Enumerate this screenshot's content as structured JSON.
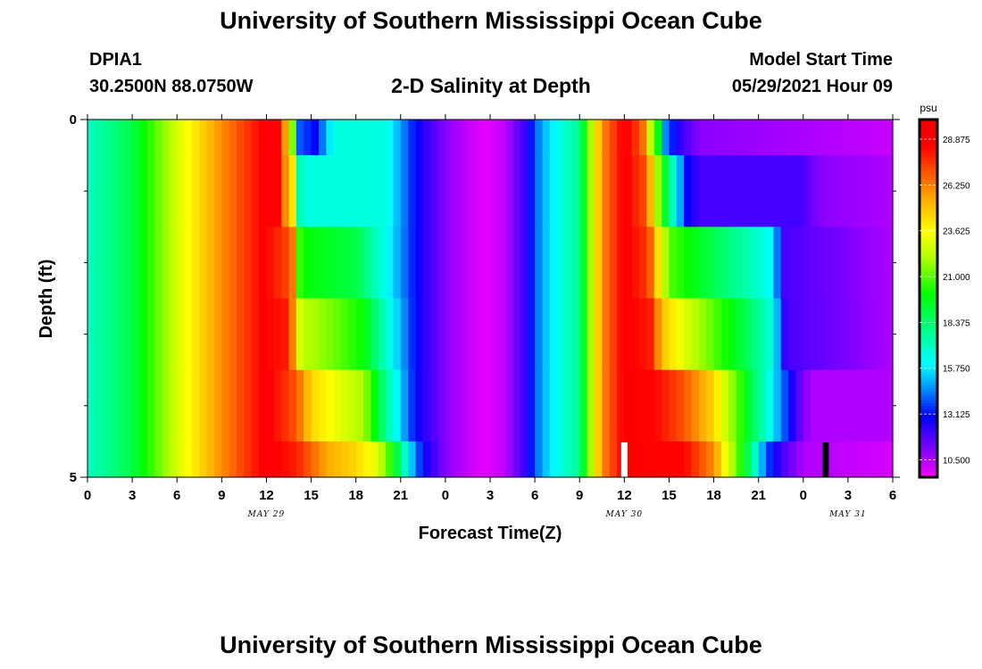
{
  "header": {
    "title_top": "University of Southern Mississippi Ocean Cube",
    "station_id": "DPIA1",
    "coordinates": "30.2500N  88.0750W",
    "subtitle": "2-D Salinity at Depth",
    "model_start_label": "Model Start Time",
    "model_start_value": "05/29/2021 Hour 09",
    "title_bottom": "University of Southern Mississippi Ocean Cube"
  },
  "chart_data": {
    "type": "heatmap",
    "title": "2-D Salinity at Depth",
    "xlabel": "Forecast Time(Z)",
    "ylabel": "Depth (ft)",
    "units": "psu",
    "xlim_hours": [
      0,
      54
    ],
    "ylim": [
      0,
      5
    ],
    "x_tick_labels": [
      "0",
      "3",
      "6",
      "9",
      "12",
      "15",
      "18",
      "21",
      "0",
      "3",
      "6",
      "9",
      "12",
      "15",
      "18",
      "21",
      "0",
      "3",
      "6"
    ],
    "y_tick_labels": [
      "0",
      "5"
    ],
    "date_labels": [
      {
        "text": "MAY 29",
        "hour": 12
      },
      {
        "text": "MAY 30",
        "hour": 36
      },
      {
        "text": "MAY 31",
        "hour": 51
      }
    ],
    "colorbar": {
      "min": 9.5,
      "max": 30.0,
      "tick_labels": [
        "28.875",
        "26.250",
        "23.625",
        "21.000",
        "18.375",
        "15.750",
        "13.125",
        "10.500"
      ],
      "tick_values": [
        28.875,
        26.25,
        23.625,
        21.0,
        18.375,
        15.75,
        13.125,
        10.5
      ]
    },
    "depth_layers": [
      {
        "top": 0.0,
        "bottom": 0.5
      },
      {
        "top": 0.5,
        "bottom": 1.5
      },
      {
        "top": 1.5,
        "bottom": 2.5
      },
      {
        "top": 2.5,
        "bottom": 3.5
      },
      {
        "top": 3.5,
        "bottom": 4.5
      },
      {
        "top": 4.5,
        "bottom": 5.0
      }
    ],
    "base_profile": [
      {
        "hour": 0,
        "value": 17.0
      },
      {
        "hour": 3,
        "value": 19.0
      },
      {
        "hour": 6,
        "value": 22.8
      },
      {
        "hour": 9,
        "value": 26.0
      },
      {
        "hour": 12,
        "value": 28.8
      },
      {
        "hour": 13.8,
        "value": 28.0
      },
      {
        "hour": 15,
        "value": 19.0
      },
      {
        "hour": 18,
        "value": 16.0
      },
      {
        "hour": 20.5,
        "value": 15.0
      },
      {
        "hour": 22,
        "value": 12.5
      },
      {
        "hour": 24,
        "value": 11.0
      },
      {
        "hour": 26.5,
        "value": 9.8
      },
      {
        "hour": 28,
        "value": 10.3
      },
      {
        "hour": 29.2,
        "value": 12.0
      },
      {
        "hour": 30.5,
        "value": 15.0
      },
      {
        "hour": 33,
        "value": 18.0
      },
      {
        "hour": 34.5,
        "value": 26.0
      },
      {
        "hour": 36,
        "value": 28.8
      },
      {
        "hour": 37,
        "value": 28.5
      },
      {
        "hour": 38,
        "value": 22.0
      },
      {
        "hour": 39,
        "value": 14.0
      },
      {
        "hour": 40.5,
        "value": 11.5
      },
      {
        "hour": 46,
        "value": 10.8
      },
      {
        "hour": 54,
        "value": 10.5
      }
    ],
    "layer_profiles": [
      [
        {
          "hour": 13,
          "value": 27.0
        },
        {
          "hour": 13.6,
          "value": 24.0
        },
        {
          "hour": 14.2,
          "value": 14.0
        },
        {
          "hour": 15.3,
          "value": 13.0
        },
        {
          "hour": 16.5,
          "value": 16.5
        },
        {
          "hour": 20,
          "value": 16.5
        },
        {
          "hour": 22,
          "value": 13.0
        },
        {
          "hour": 24,
          "value": 11.0
        },
        {
          "hour": 26.5,
          "value": 9.8
        },
        {
          "hour": 28,
          "value": 10.3
        },
        {
          "hour": 29.2,
          "value": 12.0
        },
        {
          "hour": 30.5,
          "value": 15.0
        },
        {
          "hour": 33,
          "value": 18.0
        },
        {
          "hour": 34.5,
          "value": 26.0
        },
        {
          "hour": 36,
          "value": 28.8
        },
        {
          "hour": 37.2,
          "value": 27.0
        },
        {
          "hour": 37.8,
          "value": 22.0
        },
        {
          "hour": 38.3,
          "value": 19.5
        },
        {
          "hour": 38.8,
          "value": 14.0
        },
        {
          "hour": 40,
          "value": 12.0
        },
        {
          "hour": 41,
          "value": 11.0
        },
        {
          "hour": 54,
          "value": 10.2
        }
      ],
      [
        {
          "hour": 13,
          "value": 27.0
        },
        {
          "hour": 13.8,
          "value": 24.0
        },
        {
          "hour": 14.3,
          "value": 16.5
        },
        {
          "hour": 20,
          "value": 16.5
        },
        {
          "hour": 22,
          "value": 13.0
        },
        {
          "hour": 24,
          "value": 11.0
        },
        {
          "hour": 26.5,
          "value": 9.8
        },
        {
          "hour": 28,
          "value": 10.3
        },
        {
          "hour": 29.2,
          "value": 12.0
        },
        {
          "hour": 30.5,
          "value": 15.0
        },
        {
          "hour": 33,
          "value": 18.0
        },
        {
          "hour": 34.5,
          "value": 26.0
        },
        {
          "hour": 36,
          "value": 28.8
        },
        {
          "hour": 37.5,
          "value": 27.0
        },
        {
          "hour": 38.2,
          "value": 22.0
        },
        {
          "hour": 38.8,
          "value": 19.0
        },
        {
          "hour": 39.5,
          "value": 16.0
        },
        {
          "hour": 40.2,
          "value": 13.0
        },
        {
          "hour": 41,
          "value": 12.0
        },
        {
          "hour": 48,
          "value": 12.0
        },
        {
          "hour": 49,
          "value": 11.0
        },
        {
          "hour": 54,
          "value": 10.5
        }
      ],
      [
        {
          "hour": 12,
          "value": 28.5
        },
        {
          "hour": 13.7,
          "value": 27.0
        },
        {
          "hour": 14.3,
          "value": 20.0
        },
        {
          "hour": 16,
          "value": 19.5
        },
        {
          "hour": 18,
          "value": 19.0
        },
        {
          "hour": 20.5,
          "value": 15.5
        },
        {
          "hour": 22,
          "value": 13.0
        },
        {
          "hour": 24,
          "value": 11.0
        },
        {
          "hour": 26.5,
          "value": 9.8
        },
        {
          "hour": 28,
          "value": 10.3
        },
        {
          "hour": 29.2,
          "value": 12.0
        },
        {
          "hour": 30.5,
          "value": 15.0
        },
        {
          "hour": 33,
          "value": 18.0
        },
        {
          "hour": 34.5,
          "value": 26.0
        },
        {
          "hour": 36,
          "value": 28.8
        },
        {
          "hour": 37.6,
          "value": 27.5
        },
        {
          "hour": 38.3,
          "value": 24.0
        },
        {
          "hour": 39,
          "value": 21.0
        },
        {
          "hour": 41,
          "value": 19.5
        },
        {
          "hour": 44,
          "value": 17.5
        },
        {
          "hour": 46,
          "value": 16.0
        },
        {
          "hour": 46.6,
          "value": 12.0
        },
        {
          "hour": 54,
          "value": 10.5
        }
      ],
      [
        {
          "hour": 12,
          "value": 28.5
        },
        {
          "hour": 13.5,
          "value": 28.0
        },
        {
          "hour": 14.3,
          "value": 22.5
        },
        {
          "hour": 17,
          "value": 21.0
        },
        {
          "hour": 18.5,
          "value": 20.0
        },
        {
          "hour": 20.5,
          "value": 16.0
        },
        {
          "hour": 22,
          "value": 13.0
        },
        {
          "hour": 24,
          "value": 11.0
        },
        {
          "hour": 26.5,
          "value": 9.8
        },
        {
          "hour": 28,
          "value": 10.3
        },
        {
          "hour": 29.2,
          "value": 12.0
        },
        {
          "hour": 30.5,
          "value": 15.0
        },
        {
          "hour": 33,
          "value": 18.0
        },
        {
          "hour": 34.5,
          "value": 26.0
        },
        {
          "hour": 36,
          "value": 28.8
        },
        {
          "hour": 37.8,
          "value": 28.0
        },
        {
          "hour": 38.5,
          "value": 25.0
        },
        {
          "hour": 40,
          "value": 23.0
        },
        {
          "hour": 42,
          "value": 21.0
        },
        {
          "hour": 44,
          "value": 19.0
        },
        {
          "hour": 46,
          "value": 16.5
        },
        {
          "hour": 46.8,
          "value": 12.0
        },
        {
          "hour": 54,
          "value": 10.5
        }
      ],
      [
        {
          "hour": 12,
          "value": 28.8
        },
        {
          "hour": 14,
          "value": 27.0
        },
        {
          "hour": 15,
          "value": 24.5
        },
        {
          "hour": 17,
          "value": 23.0
        },
        {
          "hour": 18.5,
          "value": 22.0
        },
        {
          "hour": 20.5,
          "value": 16.5
        },
        {
          "hour": 22,
          "value": 13.0
        },
        {
          "hour": 24,
          "value": 11.0
        },
        {
          "hour": 26.5,
          "value": 9.8
        },
        {
          "hour": 28,
          "value": 10.3
        },
        {
          "hour": 29.2,
          "value": 12.0
        },
        {
          "hour": 30.5,
          "value": 15.0
        },
        {
          "hour": 33,
          "value": 18.0
        },
        {
          "hour": 34.5,
          "value": 26.0
        },
        {
          "hour": 36,
          "value": 28.8
        },
        {
          "hour": 38,
          "value": 28.5
        },
        {
          "hour": 40,
          "value": 27.0
        },
        {
          "hour": 42,
          "value": 24.5
        },
        {
          "hour": 44,
          "value": 20.0
        },
        {
          "hour": 45.5,
          "value": 17.0
        },
        {
          "hour": 46.7,
          "value": 14.0
        },
        {
          "hour": 47.5,
          "value": 12.0
        },
        {
          "hour": 48.5,
          "value": 10.5
        },
        {
          "hour": 54,
          "value": 10.5
        }
      ],
      [
        {
          "hour": 12,
          "value": 28.8
        },
        {
          "hour": 14,
          "value": 28.0
        },
        {
          "hour": 16,
          "value": 25.5
        },
        {
          "hour": 18,
          "value": 24.5
        },
        {
          "hour": 19.5,
          "value": 23.0
        },
        {
          "hour": 20.5,
          "value": 20.0
        },
        {
          "hour": 21.5,
          "value": 16.0
        },
        {
          "hour": 22.5,
          "value": 13.0
        },
        {
          "hour": 24,
          "value": 11.0
        },
        {
          "hour": 26.5,
          "value": 9.8
        },
        {
          "hour": 28,
          "value": 10.3
        },
        {
          "hour": 29.2,
          "value": 12.0
        },
        {
          "hour": 30.5,
          "value": 15.0
        },
        {
          "hour": 33,
          "value": 18.0
        },
        {
          "hour": 34.5,
          "value": 26.0
        },
        {
          "hour": 36,
          "value": 28.8
        },
        {
          "hour": 40,
          "value": 28.5
        },
        {
          "hour": 42,
          "value": 26.0
        },
        {
          "hour": 43,
          "value": 23.0
        },
        {
          "hour": 44.5,
          "value": 18.0
        },
        {
          "hour": 45.5,
          "value": 14.0
        },
        {
          "hour": 46.5,
          "value": 12.0
        },
        {
          "hour": 48,
          "value": 10.5
        },
        {
          "hour": 54,
          "value": 10.0
        }
      ]
    ],
    "markers": [
      {
        "hour": 36,
        "depth_top": 4.5,
        "depth_bottom": 5.0,
        "color": "#ffffff"
      },
      {
        "hour": 49.5,
        "depth_top": 4.5,
        "depth_bottom": 5.0,
        "color": "#000000"
      }
    ],
    "colormap": [
      {
        "value": 9.5,
        "color": "#ff00ff"
      },
      {
        "value": 11.0,
        "color": "#8800ff"
      },
      {
        "value": 13.0,
        "color": "#0000ff"
      },
      {
        "value": 14.5,
        "color": "#0088ff"
      },
      {
        "value": 16.0,
        "color": "#00ffff"
      },
      {
        "value": 18.0,
        "color": "#00ff88"
      },
      {
        "value": 20.0,
        "color": "#00ff00"
      },
      {
        "value": 22.0,
        "color": "#aaff00"
      },
      {
        "value": 23.6,
        "color": "#ffff00"
      },
      {
        "value": 25.5,
        "color": "#ffaa00"
      },
      {
        "value": 27.0,
        "color": "#ff5500"
      },
      {
        "value": 28.5,
        "color": "#ff0000"
      },
      {
        "value": 30.0,
        "color": "#ee0000"
      }
    ]
  }
}
